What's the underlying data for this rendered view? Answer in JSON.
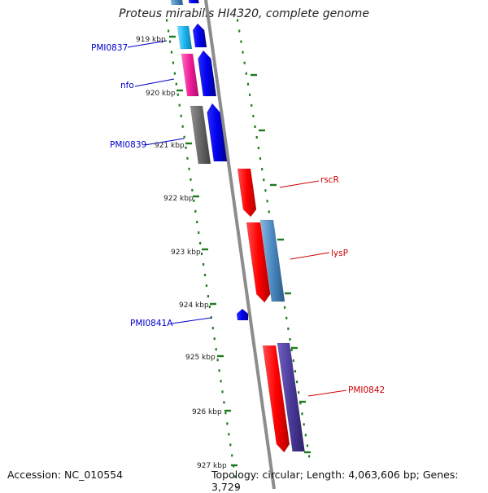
{
  "title": "Proteus mirabilis HI4320, complete genome",
  "footer": {
    "accession": "Accession: NC_010554",
    "summary": "Topology: circular; Length: 4,063,606 bp; Genes: 3,729"
  },
  "scale_labels": [
    {
      "label": "919 kbp",
      "kbp": 919
    },
    {
      "label": "920 kbp",
      "kbp": 920
    },
    {
      "label": "921 kbp",
      "kbp": 921
    },
    {
      "label": "922 kbp",
      "kbp": 922
    },
    {
      "label": "923 kbp",
      "kbp": 923
    },
    {
      "label": "924 kbp",
      "kbp": 924
    },
    {
      "label": "925 kbp",
      "kbp": 925
    },
    {
      "label": "926 kbp",
      "kbp": 926
    },
    {
      "label": "927 kbp",
      "kbp": 927
    }
  ],
  "gene_labels": [
    {
      "name": "PMI0837",
      "strand": "forward",
      "color": "#0000cc"
    },
    {
      "name": "nfo",
      "strand": "forward",
      "color": "#0000cc"
    },
    {
      "name": "PMI0839",
      "strand": "forward",
      "color": "#0000cc"
    },
    {
      "name": "rscR",
      "strand": "reverse",
      "color": "#cc0000"
    },
    {
      "name": "lysP",
      "strand": "reverse",
      "color": "#cc0000"
    },
    {
      "name": "PMI0841A",
      "strand": "forward",
      "color": "#0000cc"
    },
    {
      "name": "PMI0842",
      "strand": "reverse",
      "color": "#cc0000"
    }
  ],
  "colors": {
    "backbone": "#8c8c8c",
    "ticks": "#1e7a1e",
    "forward_gene": "#0000ee",
    "reverse_gene": "#ff0000"
  }
}
